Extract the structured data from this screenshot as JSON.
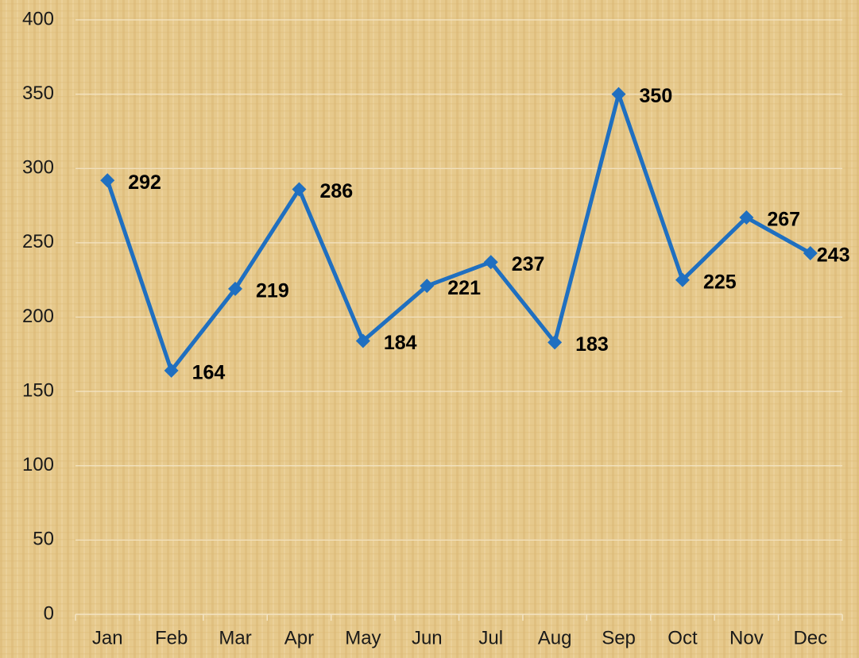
{
  "chart_data": {
    "type": "line",
    "categories": [
      "Jan",
      "Feb",
      "Mar",
      "Apr",
      "May",
      "Jun",
      "Jul",
      "Aug",
      "Sep",
      "Oct",
      "Nov",
      "Dec"
    ],
    "series": [
      {
        "color": "#1f6fc0",
        "values": [
          292,
          164,
          219,
          286,
          184,
          221,
          237,
          183,
          350,
          225,
          267,
          243
        ]
      }
    ],
    "ylim": [
      0,
      400
    ],
    "yticks": [
      0,
      50,
      100,
      150,
      200,
      250,
      300,
      350,
      400
    ],
    "grid": true
  }
}
